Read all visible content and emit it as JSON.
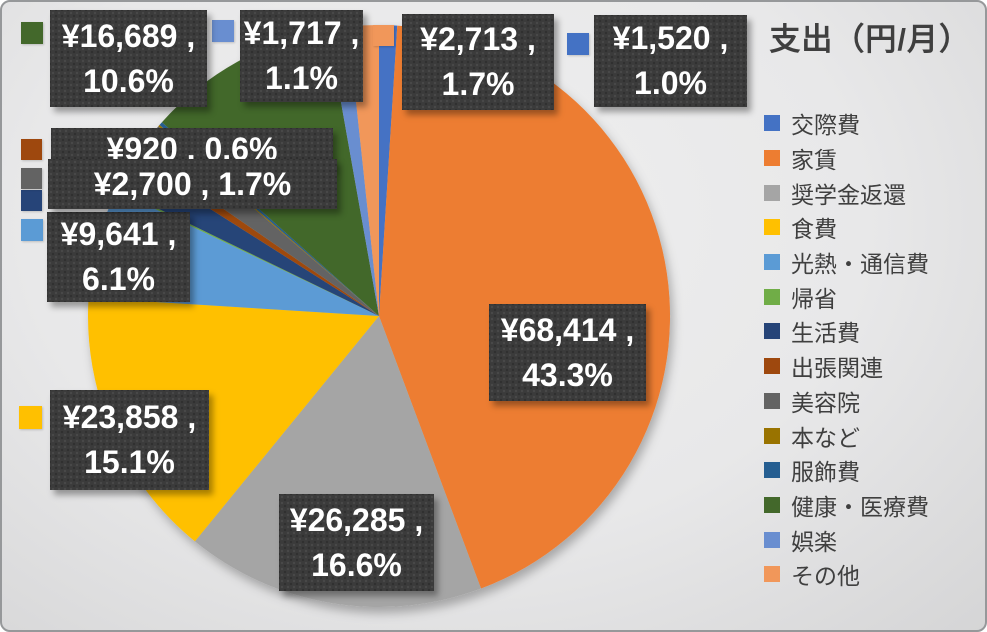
{
  "window": {
    "title_label": "支出（円/月）"
  },
  "chart_data": {
    "type": "pie",
    "title": "支出（円/月）",
    "unit": "円/月",
    "legend_position": "right",
    "start_angle_deg": 0,
    "direction": "clockwise",
    "label_box_color": "#3b3b3b",
    "label_text_color": "#ffffff",
    "slices": [
      {
        "name": "交際費",
        "color": "#4472C4",
        "value": 1520,
        "percent": 1.0,
        "label_lines": [
          "¥1,520 ,",
          "1.0%"
        ],
        "label_visible": true,
        "label_has_key": true
      },
      {
        "name": "家賃",
        "color": "#ED7D31",
        "value": 68414,
        "percent": 43.3,
        "label_lines": [
          "¥68,414 ,",
          "43.3%"
        ],
        "label_visible": true,
        "label_has_key": false
      },
      {
        "name": "奨学金返還",
        "color": "#A5A5A5",
        "value": 26285,
        "percent": 16.6,
        "label_lines": [
          "¥26,285 ,",
          "16.6%"
        ],
        "label_visible": true,
        "label_has_key": false
      },
      {
        "name": "食費",
        "color": "#FFC000",
        "value": 23858,
        "percent": 15.1,
        "label_lines": [
          "¥23,858 ,",
          "15.1%"
        ],
        "label_visible": true,
        "label_has_key": true
      },
      {
        "name": "光熱・通信費",
        "color": "#5B9BD5",
        "value": 9641,
        "percent": 6.1,
        "label_lines": [
          "¥9,641 ,",
          "6.1%"
        ],
        "label_visible": true,
        "label_has_key": true
      },
      {
        "name": "帰省",
        "color": "#70AD47",
        "value": null,
        "percent": null,
        "render_percent": 0.1,
        "label_visible": false,
        "label_has_key": false
      },
      {
        "name": "生活費",
        "color": "#264478",
        "value": null,
        "percent": null,
        "render_percent": 1.8,
        "label_visible": false,
        "label_has_key": true
      },
      {
        "name": "出張関連",
        "color": "#9E480E",
        "value": 920,
        "percent": 0.6,
        "label_lines": [
          "¥920 , 0.6%"
        ],
        "label_visible": true,
        "label_has_key": true
      },
      {
        "name": "美容院",
        "color": "#636363",
        "value": 2700,
        "percent": 1.7,
        "label_lines": [
          "¥2,700 , 1.7%"
        ],
        "label_visible": true,
        "label_has_key": true
      },
      {
        "name": "本など",
        "color": "#997300",
        "value": null,
        "percent": null,
        "render_percent": 0.1,
        "label_visible": false,
        "label_has_key": false
      },
      {
        "name": "服飾費",
        "color": "#255E91",
        "value": null,
        "percent": null,
        "render_percent": 0.2,
        "label_visible": false,
        "label_has_key": false
      },
      {
        "name": "健康・医療費",
        "color": "#43682B",
        "value": 16689,
        "percent": 10.6,
        "label_lines": [
          "¥16,689 ,",
          "10.6%"
        ],
        "label_visible": true,
        "label_has_key": true
      },
      {
        "name": "娯楽",
        "color": "#698ED0",
        "value": 1717,
        "percent": 1.1,
        "label_lines": [
          "¥1,717 ,",
          "1.1%"
        ],
        "label_visible": true,
        "label_has_key": true
      },
      {
        "name": "その他",
        "color": "#F1975A",
        "value": 2713,
        "percent": 1.7,
        "label_lines": [
          "¥2,713 ,",
          "1.7%"
        ],
        "label_visible": true,
        "label_has_key": true
      }
    ],
    "legend_items": [
      "交際費",
      "家賃",
      "奨学金返還",
      "食費",
      "光熱・通信費",
      "帰省",
      "生活費",
      "出張関連",
      "美容院",
      "本など",
      "服飾費",
      "健康・医療費",
      "娯楽",
      "その他"
    ]
  }
}
